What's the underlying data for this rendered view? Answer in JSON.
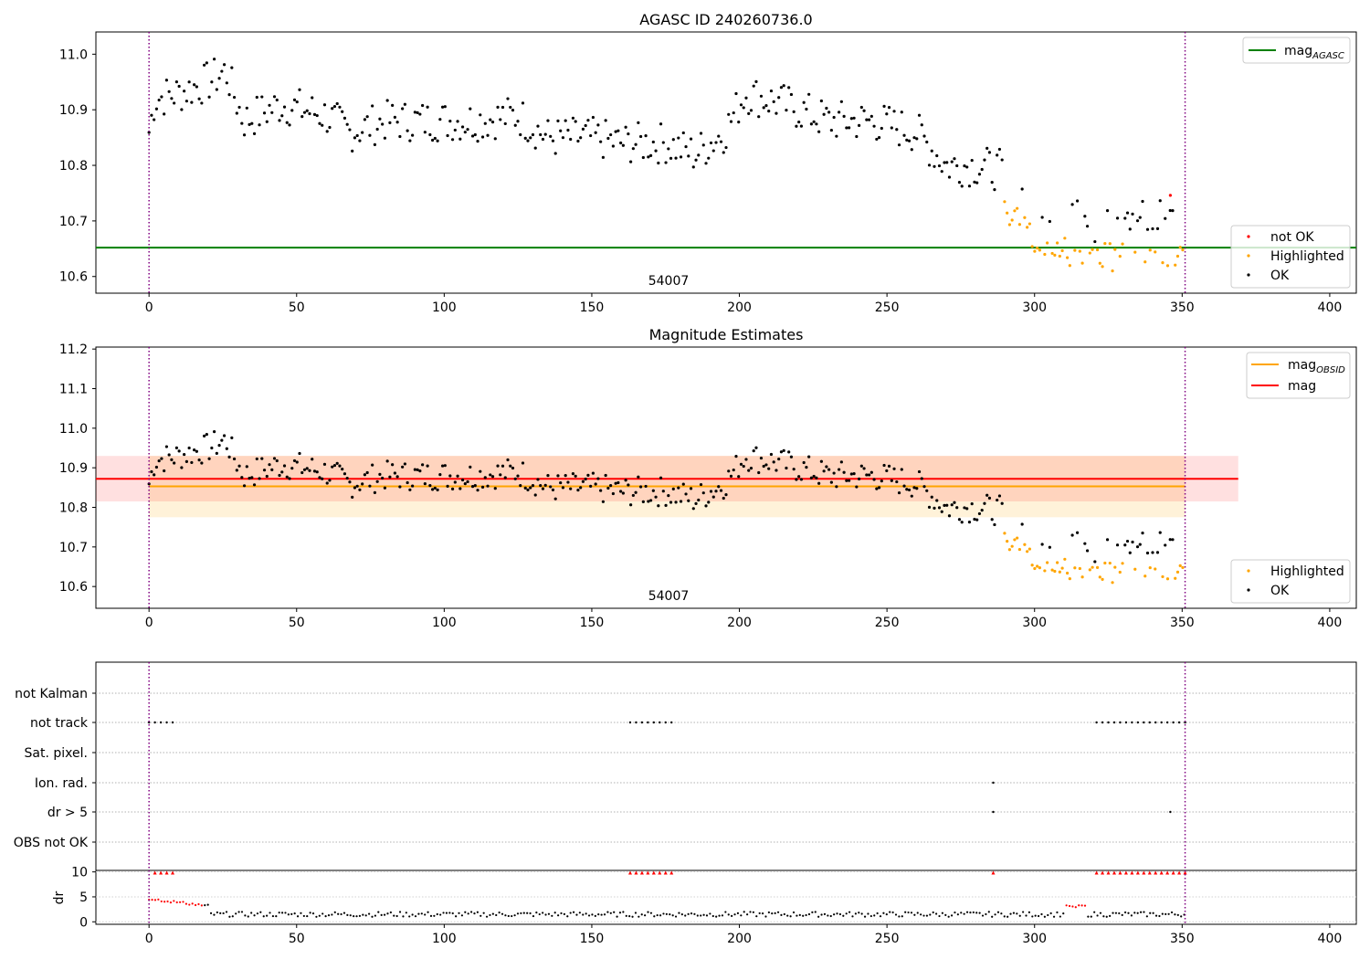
{
  "chart_data": [
    {
      "type": "scatter",
      "title": "AGASC ID 240260736.0",
      "xlim": [
        -18,
        409
      ],
      "ylim": [
        10.57,
        11.04
      ],
      "xticks": [
        0,
        50,
        100,
        150,
        200,
        250,
        300,
        350,
        400
      ],
      "yticks": [
        "10.6",
        "10.7",
        "10.8",
        "10.9",
        "11.0"
      ],
      "ytick_values": [
        10.6,
        10.7,
        10.8,
        10.9,
        11.0
      ],
      "obs_lines_x": [
        0,
        351
      ],
      "annotation": {
        "text": "54007",
        "x": 175
      },
      "hline": {
        "name": "mag_AGASC",
        "value": 10.652,
        "color": "#008000"
      },
      "legend_top": [
        {
          "label": "mag",
          "sub": "AGASC",
          "color": "#008000",
          "kind": "line"
        }
      ],
      "legend_bottom": [
        {
          "label": "not OK",
          "color": "#ff0000",
          "kind": "dot"
        },
        {
          "label": "Highlighted",
          "color": "#ffa500",
          "kind": "dot"
        },
        {
          "label": "OK",
          "color": "#000000",
          "kind": "dot"
        }
      ],
      "series": [
        {
          "name": "OK",
          "color": "#000000",
          "points": "mag_ok"
        },
        {
          "name": "Highlighted",
          "color": "#ffa500",
          "points": "mag_highlighted"
        },
        {
          "name": "not OK",
          "color": "#ff0000",
          "points": [
            [
              346,
              10.746
            ]
          ]
        }
      ]
    },
    {
      "type": "scatter",
      "title": "Magnitude Estimates",
      "xlim": [
        -18,
        409
      ],
      "ylim": [
        10.545,
        11.205
      ],
      "xticks": [
        0,
        50,
        100,
        150,
        200,
        250,
        300,
        350,
        400
      ],
      "yticks": [
        "10.6",
        "10.7",
        "10.8",
        "10.9",
        "11.0",
        "11.1",
        "11.2"
      ],
      "ytick_values": [
        10.6,
        10.7,
        10.8,
        10.9,
        11.0,
        11.1,
        11.2
      ],
      "obs_lines_x": [
        0,
        351
      ],
      "annotation": {
        "text": "54007",
        "x": 175
      },
      "bands": [
        {
          "name": "mag_OBSID range",
          "x0": 0,
          "x1": 351,
          "y0": 10.775,
          "y1": 10.93,
          "color": "#ffa500",
          "opacity": 0.15
        },
        {
          "name": "mag range",
          "x0": -18,
          "x1": 369,
          "y0": 10.815,
          "y1": 10.93,
          "color": "#ff0000",
          "opacity": 0.12
        }
      ],
      "lines": [
        {
          "name": "mag_OBSID",
          "x0": 0,
          "x1": 351,
          "value": 10.853,
          "color": "#ffa500"
        },
        {
          "name": "mag",
          "x0": -18,
          "x1": 369,
          "value": 10.872,
          "color": "#ff0000"
        }
      ],
      "legend_top": [
        {
          "label": "mag",
          "sub": "OBSID",
          "color": "#ffa500",
          "kind": "line"
        },
        {
          "label": "mag",
          "sub": "",
          "color": "#ff0000",
          "kind": "line"
        }
      ],
      "legend_bottom": [
        {
          "label": "Highlighted",
          "color": "#ffa500",
          "kind": "dot"
        },
        {
          "label": "OK",
          "color": "#000000",
          "kind": "dot"
        }
      ],
      "series": [
        {
          "name": "OK",
          "color": "#000000",
          "points": "mag_ok"
        },
        {
          "name": "Highlighted",
          "color": "#ffa500",
          "points": "mag_highlighted"
        }
      ]
    },
    {
      "type": "scatter",
      "title": "",
      "xlim": [
        -18,
        409
      ],
      "categories": [
        "not Kalman",
        "not track",
        "Sat. pixel.",
        "Ion. rad.",
        "dr > 5",
        "OBS not OK"
      ],
      "flags": {
        "not Kalman": [],
        "not track": [
          0,
          2,
          4,
          6,
          8,
          163,
          165,
          167,
          169,
          171,
          173,
          175,
          177,
          321,
          323,
          325,
          327,
          329,
          331,
          333,
          335,
          337,
          339,
          341,
          343,
          345,
          347,
          349,
          351
        ],
        "Sat. pixel.": [],
        "Ion. rad.": [
          286
        ],
        "dr > 5": [
          286,
          346
        ],
        "OBS not OK": []
      },
      "obs_lines_x": [
        0,
        351
      ]
    },
    {
      "type": "scatter",
      "title": "",
      "ylabel": "dr",
      "xlim": [
        -18,
        409
      ],
      "ylim": [
        -0.5,
        10.3
      ],
      "xticks": [
        0,
        50,
        100,
        150,
        200,
        250,
        300,
        350,
        400
      ],
      "yticks": [
        "0",
        "5",
        "10"
      ],
      "ytick_values": [
        0,
        5,
        10
      ],
      "obs_lines_x": [
        0,
        351
      ],
      "clipped_markers_x": [
        2,
        4,
        6,
        8,
        163,
        165,
        167,
        169,
        171,
        173,
        175,
        177,
        286,
        321,
        323,
        325,
        327,
        329,
        331,
        333,
        335,
        337,
        339,
        341,
        343,
        345,
        347,
        349,
        351
      ]
    }
  ]
}
